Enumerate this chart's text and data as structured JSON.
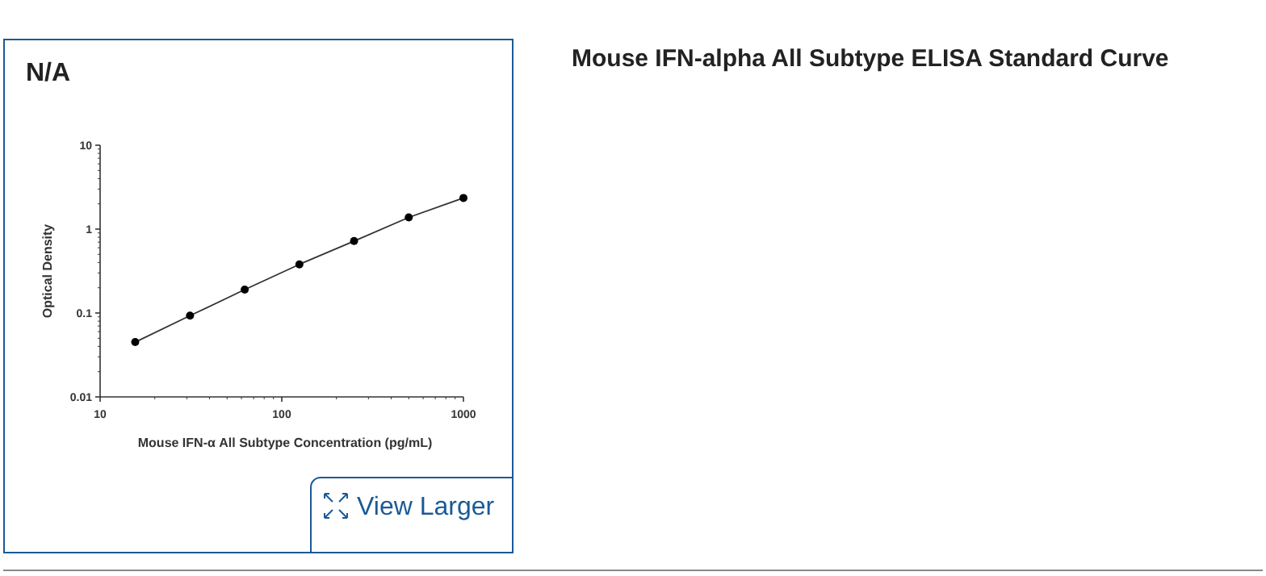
{
  "chart_data": {
    "type": "scatter",
    "title": "Mouse IFN-alpha All Subtype ELISA Standard Curve",
    "xlabel": "Mouse IFN-α All Subtype Concentration (pg/mL)",
    "ylabel": "Optical Density",
    "annotations": [
      "N/A",
      "View Larger"
    ],
    "log": "xy",
    "xlim": [
      10,
      1000
    ],
    "xticks": [
      10,
      100,
      1000
    ],
    "ylim": [
      0.01,
      10
    ],
    "yticks": [
      0.01,
      0.1,
      1,
      10
    ],
    "grid": false,
    "series": [
      {
        "type": "line",
        "color": "#333333",
        "line_style": "solid",
        "marker": "none",
        "x": [
          15.6,
          31.25,
          62.5,
          125,
          250,
          500,
          1000
        ],
        "values": [
          0.045,
          0.093,
          0.19,
          0.38,
          0.72,
          1.38,
          2.35
        ]
      },
      {
        "color": "#000000",
        "marker": "circle",
        "x": [
          15.6,
          31.25,
          62.5,
          125,
          250,
          500,
          1000
        ],
        "values": [
          0.045,
          0.093,
          0.19,
          0.38,
          0.72,
          1.38,
          2.35
        ]
      }
    ]
  }
}
